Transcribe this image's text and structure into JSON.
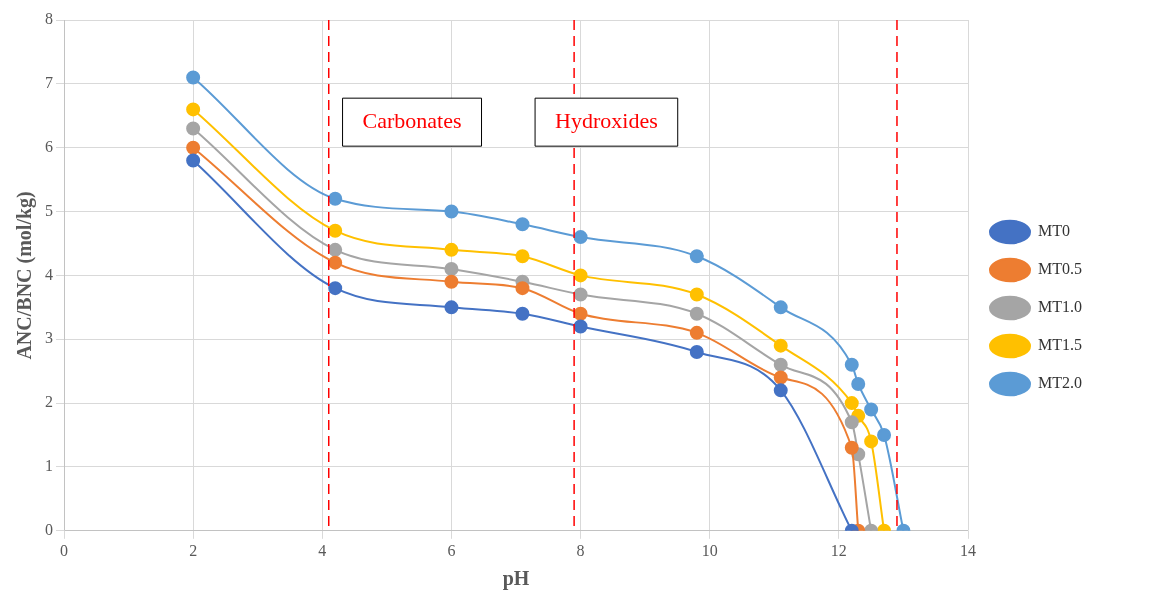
{
  "chart_data": {
    "type": "line",
    "xlabel": "pH",
    "ylabel": "ANC/BNC (mol/kg)",
    "xlim": [
      0,
      14
    ],
    "xticks": [
      0,
      2,
      4,
      6,
      8,
      10,
      12,
      14
    ],
    "ylim": [
      0,
      8
    ],
    "yticks": [
      0,
      1,
      2,
      3,
      4,
      5,
      6,
      7,
      8
    ],
    "grid": true,
    "legend": "right",
    "marker": "circle",
    "line_style": "solid",
    "series": [
      {
        "name": "MT0",
        "color": "#4472c4",
        "x": [
          2,
          4.2,
          6,
          7.1,
          8,
          9.8,
          11.1,
          12.2
        ],
        "values": [
          5.8,
          3.8,
          3.5,
          3.4,
          3.2,
          2.8,
          2.2,
          0
        ]
      },
      {
        "name": "MT0.5",
        "color": "#ed7d31",
        "x": [
          2,
          4.2,
          6,
          7.1,
          8,
          9.8,
          11.1,
          12.2,
          12.3
        ],
        "values": [
          6.0,
          4.2,
          3.9,
          3.8,
          3.4,
          3.1,
          2.4,
          1.3,
          0
        ]
      },
      {
        "name": "MT1.0",
        "color": "#a5a5a5",
        "x": [
          2,
          4.2,
          6,
          7.1,
          8,
          9.8,
          11.1,
          12.2,
          12.3,
          12.5
        ],
        "values": [
          6.3,
          4.4,
          4.1,
          3.9,
          3.7,
          3.4,
          2.6,
          1.7,
          1.2,
          0
        ]
      },
      {
        "name": "MT1.5",
        "color": "#ffc000",
        "x": [
          2,
          4.2,
          6,
          7.1,
          8,
          9.8,
          11.1,
          12.2,
          12.3,
          12.5,
          12.7
        ],
        "values": [
          6.6,
          4.7,
          4.4,
          4.3,
          4.0,
          3.7,
          2.9,
          2.0,
          1.8,
          1.4,
          0
        ]
      },
      {
        "name": "MT2.0",
        "color": "#5b9bd5",
        "x": [
          2,
          4.2,
          6,
          7.1,
          8,
          9.8,
          11.1,
          12.2,
          12.3,
          12.5,
          12.7,
          13
        ],
        "values": [
          7.1,
          5.2,
          5.0,
          4.8,
          4.6,
          4.3,
          3.5,
          2.6,
          2.3,
          1.9,
          1.5,
          0
        ]
      }
    ],
    "ref_lines": [
      {
        "axis": "x",
        "value": 4.1,
        "color": "#ff0000",
        "line_style": "dashed"
      },
      {
        "axis": "x",
        "value": 7.9,
        "color": "#ff0000",
        "line_style": "dashed"
      },
      {
        "axis": "x",
        "value": 12.9,
        "color": "#ff0000",
        "line_style": "dashed"
      }
    ],
    "annotations": [
      "Carbonates",
      "Hydroxides"
    ]
  }
}
